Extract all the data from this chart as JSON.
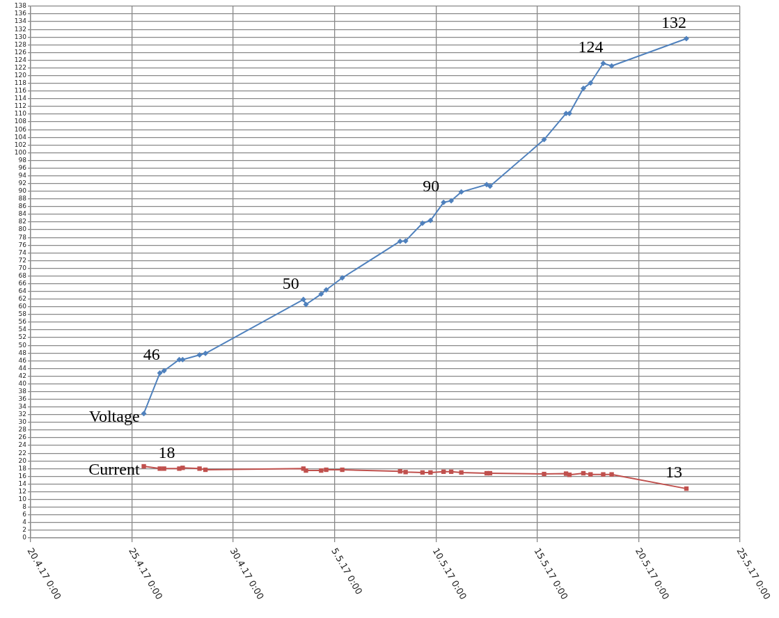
{
  "chart_data": {
    "type": "line",
    "x": [
      "--04-25T14:00",
      "--04-26T09:00",
      "--04-26T14:00",
      "--04-27T08:00",
      "--04-27T12:00",
      "--04-28T08:00",
      "--04-28T15:00",
      "--05-03T11:00",
      "--05-03T14:00",
      "--05-04T08:00",
      "--05-04T14:00",
      "--05-05T09:00",
      "--05-08T05:30",
      "--05-08T12:00",
      "--05-09T08:00",
      "--05-09T17:30",
      "--05-10T09:00",
      "--05-10T18:00",
      "--05-11T06:00",
      "--05-12T12:00",
      "--05-12T16:00",
      "--05-15T08:00",
      "--05-16T10:00",
      "--05-16T14:00",
      "--05-17T06:30",
      "--05-17T15:00",
      "--05-18T06:00",
      "--05-18T16:00",
      "--05-22T08:30"
    ],
    "series": [
      {
        "name": "Voltage",
        "color": "#4f81bd",
        "marker": "diamond",
        "values": [
          32.3,
          42.8,
          43.4,
          46.3,
          46.3,
          47.5,
          47.9,
          61.9,
          60.6,
          63.3,
          64.4,
          67.5,
          77.0,
          77.1,
          81.7,
          82.4,
          87.1,
          87.5,
          89.8,
          91.7,
          91.3,
          103.4,
          110.2,
          110.2,
          116.7,
          118.1,
          123.2,
          122.5,
          129.6
        ]
      },
      {
        "name": "Current",
        "color": "#c0504d",
        "marker": "square",
        "values": [
          18.6,
          18.0,
          18.0,
          18.0,
          18.2,
          18.0,
          17.7,
          18.0,
          17.5,
          17.5,
          17.7,
          17.7,
          17.3,
          17.1,
          17.0,
          17.0,
          17.2,
          17.2,
          17.0,
          16.8,
          16.8,
          16.6,
          16.7,
          16.4,
          16.8,
          16.5,
          16.5,
          16.5,
          12.8
        ]
      }
    ],
    "xlim": [
      "--04-20",
      "--05-25"
    ],
    "xticks": [
      {
        "value": "--04-20",
        "label": "20.4.17 0:00"
      },
      {
        "value": "--04-25",
        "label": "25.4.17 0:00"
      },
      {
        "value": "--04-30",
        "label": "30.4.17 0:00"
      },
      {
        "value": "--05-05",
        "label": "5.5.17 0:00"
      },
      {
        "value": "--05-10",
        "label": "10.5.17 0:00"
      },
      {
        "value": "--05-15",
        "label": "15.5.17 0:00"
      },
      {
        "value": "--05-20",
        "label": "20.5.17 0:00"
      },
      {
        "value": "--05-25",
        "label": "25.5.17 0:00"
      }
    ],
    "ylim": [
      0,
      138
    ],
    "yticks": [
      0,
      2,
      4,
      6,
      8,
      10,
      12,
      14,
      16,
      18,
      20,
      22,
      24,
      26,
      28,
      30,
      32,
      34,
      36,
      38,
      40,
      42,
      44,
      46,
      48,
      50,
      52,
      54,
      56,
      58,
      60,
      62,
      64,
      66,
      68,
      70,
      72,
      74,
      76,
      78,
      80,
      82,
      84,
      86,
      88,
      90,
      92,
      94,
      96,
      98,
      100,
      102,
      104,
      106,
      108,
      110,
      112,
      114,
      116,
      118,
      120,
      122,
      124,
      126,
      128,
      130,
      132,
      134,
      136,
      138
    ],
    "grid": true,
    "legend": false,
    "line_style": "solid",
    "annotations": [
      {
        "text": "46",
        "x": "--04-26T14:00",
        "y": 43.4
      },
      {
        "text": "50",
        "x": "--05-03T11:00",
        "y": 61.9
      },
      {
        "text": "90",
        "x": "--05-10T09:00",
        "y": 87.1
      },
      {
        "text": "124",
        "x": "--05-18T06:00",
        "y": 123.2
      },
      {
        "text": "132",
        "x": "--05-22T08:30",
        "y": 129.6
      },
      {
        "text": "18",
        "x": "--04-27T08:00",
        "y": 18.0
      },
      {
        "text": "13",
        "x": "--05-22T08:30",
        "y": 12.8
      }
    ]
  }
}
